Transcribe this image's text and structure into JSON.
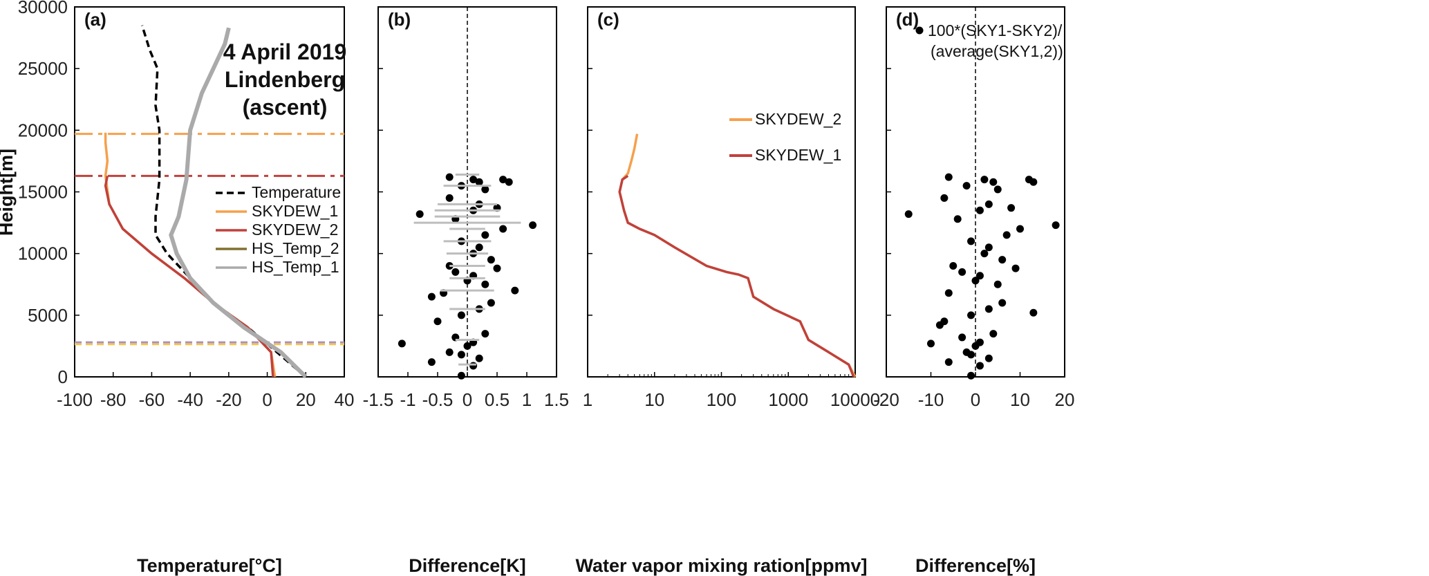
{
  "y_axis_label": "Height[m]",
  "y_ticks": [
    "0",
    "5000",
    "10000",
    "15000",
    "20000",
    "25000",
    "30000"
  ],
  "chart_data": [
    {
      "type": "line",
      "panel_label": "(a)",
      "annotation": [
        "4 April 2019",
        "Lindenberg",
        "(ascent)"
      ],
      "xlabel": "Temperature[°C]",
      "ylabel": "Height[m]",
      "xlim": [
        -100,
        40
      ],
      "ylim": [
        0,
        30000
      ],
      "x_ticks": [
        "-100",
        "-80",
        "-60",
        "-40",
        "-20",
        "0",
        "20",
        "40"
      ],
      "legend_position": "center-right",
      "series": [
        {
          "name": "Temperature",
          "color": "#000000",
          "style": "dashed",
          "x": [
            20,
            5,
            -10,
            -28,
            -40,
            -52,
            -58,
            -58,
            -56,
            -56,
            -58,
            -57,
            -61,
            -63,
            -65
          ],
          "y": [
            0,
            2000,
            4000,
            6000,
            8000,
            10000,
            11500,
            13000,
            16000,
            20000,
            22000,
            25000,
            26500,
            27500,
            28500
          ]
        },
        {
          "name": "SKYDEW_1",
          "color": "#f5a04c",
          "style": "solid",
          "x": [
            4,
            2,
            -10,
            -28,
            -43,
            -60,
            -75,
            -82,
            -84,
            -83,
            -84,
            -84
          ],
          "y": [
            0,
            2000,
            4000,
            6000,
            8000,
            10000,
            12000,
            14000,
            16300,
            17500,
            19000,
            19800
          ]
        },
        {
          "name": "SKYDEW_2",
          "color": "#c0413b",
          "style": "solid",
          "x": [
            3,
            2,
            -10,
            -28,
            -43,
            -60,
            -75,
            -82,
            -84,
            -83
          ],
          "y": [
            0,
            2000,
            4000,
            6000,
            8000,
            10000,
            12000,
            14000,
            15500,
            16300
          ]
        },
        {
          "name": "HS_Temp_2",
          "color": "#807030",
          "style": "solid",
          "x": [
            20,
            7,
            -12,
            -28,
            -40,
            -47,
            -50,
            -46,
            -42,
            -40,
            -34,
            -28,
            -22,
            -20
          ],
          "y": [
            0,
            2000,
            4000,
            6000,
            8000,
            10000,
            11500,
            13000,
            16000,
            20000,
            23000,
            25000,
            27000,
            28300
          ]
        },
        {
          "name": "HS_Temp_1",
          "color": "#aaaaaa",
          "style": "solid",
          "x": [
            20,
            7,
            -12,
            -28,
            -40,
            -47,
            -50,
            -46,
            -42,
            -40,
            -34,
            -28,
            -22,
            -20
          ],
          "y": [
            0,
            2000,
            4000,
            6000,
            8000,
            10000,
            11500,
            13000,
            16000,
            20000,
            23000,
            25000,
            27000,
            28300
          ]
        }
      ],
      "reference_lines": [
        {
          "y": 19700,
          "color": "#f5a04c",
          "style": "dash-dot"
        },
        {
          "y": 16300,
          "color": "#c0413b",
          "style": "dash-dot"
        },
        {
          "y": 2800,
          "color": "#a38fd0",
          "style": "dashed"
        },
        {
          "y": 2650,
          "color": "#f5c64c",
          "style": "dashed"
        }
      ]
    },
    {
      "type": "scatter",
      "panel_label": "(b)",
      "xlabel": "Difference[K]",
      "xlim": [
        -1.5,
        1.5
      ],
      "ylim": [
        0,
        30000
      ],
      "x_ticks": [
        "-1.5",
        "-1",
        "-0.5",
        "0",
        "0.5",
        "1",
        "1.5"
      ],
      "series": [
        {
          "name": "Difference",
          "color": "#000000",
          "x": [
            -0.3,
            0.1,
            0.2,
            -0.1,
            0.6,
            0.7,
            0.3,
            -0.3,
            -0.8,
            0.2,
            0.1,
            0.5,
            1.1,
            -0.2,
            0.6,
            0.3,
            -0.1,
            0.2,
            0.1,
            0.4,
            -0.3,
            0.5,
            -0.2,
            0.1,
            0.0,
            0.3,
            0.8,
            -0.4,
            -0.6,
            0.4,
            0.2,
            -0.1,
            -0.5,
            -1.1,
            0.3,
            -0.2,
            0.1,
            0.0,
            -0.3,
            -0.1,
            0.2,
            -0.6,
            0.1,
            -0.1
          ],
          "y": [
            16200,
            16000,
            15800,
            15500,
            16000,
            15800,
            15200,
            14500,
            13200,
            14000,
            13500,
            13700,
            12300,
            12800,
            12000,
            11500,
            11000,
            10500,
            10000,
            9500,
            9000,
            8800,
            8500,
            8200,
            7800,
            7500,
            7000,
            6800,
            6500,
            6000,
            5500,
            5000,
            4500,
            2700,
            3500,
            3200,
            2800,
            2500,
            2000,
            1800,
            1500,
            1200,
            900,
            100
          ]
        },
        {
          "name": "Error bars",
          "color": "#bdbdbd",
          "x": [
            0.2,
            0.4,
            0.5,
            0.55,
            0.55,
            0.9,
            0.3,
            0.4,
            0.35,
            0.3,
            0.3,
            0.45,
            0.3,
            0.2,
            0.15
          ],
          "y": [
            16400,
            15500,
            14000,
            13500,
            13000,
            12500,
            12000,
            11000,
            10000,
            9000,
            8000,
            7000,
            5500,
            3000,
            1000
          ]
        }
      ]
    },
    {
      "type": "line",
      "panel_label": "(c)",
      "xlabel": "Water vapor mixing ration[ppmv]",
      "xscale": "log",
      "xlim": [
        1,
        10000
      ],
      "ylim": [
        0,
        30000
      ],
      "x_ticks": [
        "1",
        "10",
        "100",
        "1000",
        "10000"
      ],
      "legend_position": "top-right",
      "series": [
        {
          "name": "SKYDEW_2",
          "color": "#f5a04c",
          "x": [
            10000,
            8000,
            4000,
            2000,
            1500,
            600,
            300,
            250,
            180,
            120,
            60,
            20,
            10,
            6,
            4,
            3.5,
            3,
            3.3,
            4,
            4.5,
            5,
            5.5
          ],
          "y": [
            0,
            1000,
            2000,
            3000,
            4500,
            5500,
            6500,
            8000,
            8300,
            8500,
            9000,
            10500,
            11500,
            12000,
            12500,
            13500,
            15000,
            16000,
            16500,
            17500,
            18500,
            19700
          ]
        },
        {
          "name": "SKYDEW_1",
          "color": "#c0413b",
          "x": [
            9500,
            8000,
            4000,
            2000,
            1500,
            600,
            300,
            250,
            180,
            120,
            60,
            20,
            10,
            6,
            4,
            3.5,
            3,
            3.3,
            4
          ],
          "y": [
            0,
            1000,
            2000,
            3000,
            4500,
            5500,
            6500,
            8000,
            8300,
            8500,
            9000,
            10500,
            11500,
            12000,
            12500,
            13500,
            15000,
            16000,
            16300
          ]
        }
      ]
    },
    {
      "type": "scatter",
      "panel_label": "(d)",
      "xlabel": "Difference[%]",
      "xlim": [
        -20,
        20
      ],
      "ylim": [
        0,
        30000
      ],
      "x_ticks": [
        "-20",
        "-10",
        "0",
        "10",
        "20"
      ],
      "legend_position": "top",
      "series": [
        {
          "name": "100*(SKY1-SKY2)/ (average(SKY1,2))",
          "color": "#000000",
          "x": [
            -6,
            2,
            4,
            -2,
            12,
            13,
            5,
            -7,
            -15,
            3,
            1,
            8,
            18,
            -4,
            10,
            7,
            -1,
            3,
            2,
            6,
            -5,
            9,
            -3,
            1,
            0,
            5,
            13,
            -6,
            -8,
            6,
            3,
            -1,
            -7,
            -10,
            4,
            -3,
            1,
            0,
            -2,
            -1,
            3,
            -6,
            1,
            -1
          ],
          "y": [
            16200,
            16000,
            15800,
            15500,
            16000,
            15800,
            15200,
            14500,
            13200,
            14000,
            13500,
            13700,
            12300,
            12800,
            12000,
            11500,
            11000,
            10500,
            10000,
            9500,
            9000,
            8800,
            8500,
            8200,
            7800,
            7500,
            5200,
            6800,
            4200,
            6000,
            5500,
            5000,
            4500,
            2700,
            3500,
            3200,
            2800,
            2500,
            2000,
            1800,
            1500,
            1200,
            900,
            100
          ]
        }
      ]
    }
  ]
}
